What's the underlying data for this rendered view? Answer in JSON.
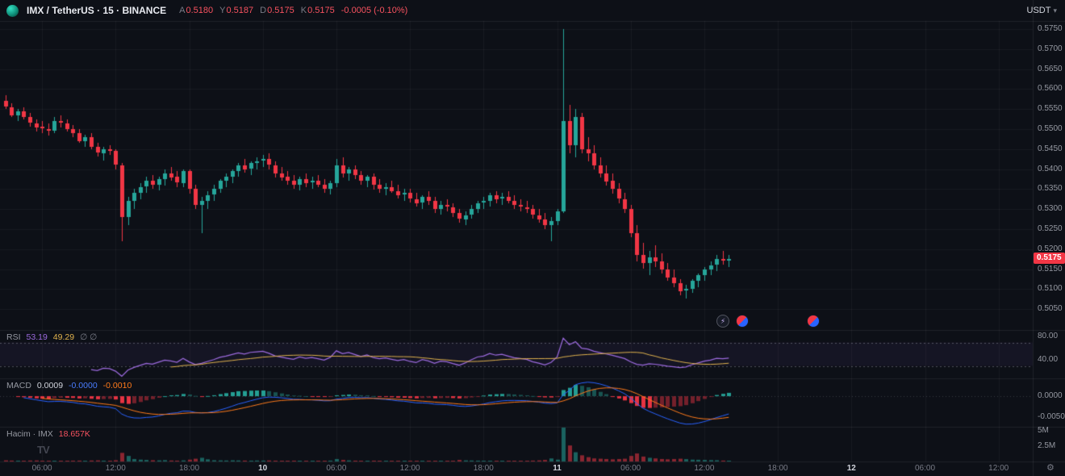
{
  "header": {
    "symbol_title": "IMX / TetherUS · 15 · BINANCE",
    "ohlc": {
      "o_label": "A",
      "o": "0.5180",
      "h_label": "Y",
      "h": "0.5187",
      "l_label": "D",
      "l": "0.5175",
      "c_label": "K",
      "c": "0.5175",
      "change": "-0.0005 (-0.10%)"
    },
    "currency_button": "USDT"
  },
  "legends": {
    "rsi": {
      "title": "RSI",
      "value1": "53.19",
      "value2": "49.29",
      "hidden": "∅ ∅"
    },
    "macd": {
      "title": "MACD",
      "hist_value": "0.0009",
      "macd_value": "-0.0000",
      "signal_value": "-0.0010"
    },
    "volume": {
      "title": "Hacim · IMX",
      "value": "18.657K"
    }
  },
  "icons": {
    "tradingview_logo": "TV",
    "currency_caret": "▾",
    "settings": "⚙",
    "flash_event": "⚡"
  },
  "axes": {
    "price_badge": "0.5175",
    "price_labels": [
      {
        "v": 0.575,
        "t": "0.5750"
      },
      {
        "v": 0.57,
        "t": "0.5700"
      },
      {
        "v": 0.565,
        "t": "0.5650"
      },
      {
        "v": 0.56,
        "t": "0.5600"
      },
      {
        "v": 0.555,
        "t": "0.5550"
      },
      {
        "v": 0.55,
        "t": "0.5500"
      },
      {
        "v": 0.545,
        "t": "0.5450"
      },
      {
        "v": 0.54,
        "t": "0.5400"
      },
      {
        "v": 0.535,
        "t": "0.5350"
      },
      {
        "v": 0.53,
        "t": "0.5300"
      },
      {
        "v": 0.525,
        "t": "0.5250"
      },
      {
        "v": 0.52,
        "t": "0.5200"
      },
      {
        "v": 0.515,
        "t": "0.5150"
      },
      {
        "v": 0.51,
        "t": "0.5100"
      },
      {
        "v": 0.505,
        "t": "0.5050"
      }
    ],
    "rsi_labels": [
      {
        "v": 80,
        "t": "80.00"
      },
      {
        "v": 40,
        "t": "40.00"
      }
    ],
    "macd_labels": [
      {
        "v": 0,
        "t": "0.0000"
      },
      {
        "v": -0.005,
        "t": "-0.0050"
      }
    ],
    "volume_labels": [
      {
        "v_k": 5000,
        "t": "5M"
      },
      {
        "v_k": 2500,
        "t": "2.5M"
      }
    ],
    "time_ticks": [
      {
        "i": 6,
        "t": "06:00",
        "major": false
      },
      {
        "i": 18,
        "t": "12:00",
        "major": false
      },
      {
        "i": 30,
        "t": "18:00",
        "major": false
      },
      {
        "i": 42,
        "t": "10",
        "major": true
      },
      {
        "i": 54,
        "t": "06:00",
        "major": false
      },
      {
        "i": 66,
        "t": "12:00",
        "major": false
      },
      {
        "i": 78,
        "t": "18:00",
        "major": false
      },
      {
        "i": 90,
        "t": "11",
        "major": true
      },
      {
        "i": 102,
        "t": "06:00",
        "major": false
      },
      {
        "i": 114,
        "t": "12:00",
        "major": false
      },
      {
        "i": 126,
        "t": "18:00",
        "major": false
      },
      {
        "i": 138,
        "t": "12",
        "major": true
      },
      {
        "i": 150,
        "t": "06:00",
        "major": false
      },
      {
        "i": 162,
        "t": "12:00",
        "major": false
      }
    ]
  },
  "colors": {
    "background": "#0d1017",
    "up": "#26a69a",
    "down": "#f23645",
    "rsi_line": "#9c6ade",
    "rsi_ma": "#e0b24d",
    "rsi_band": "rgba(126,87,194,0.08)",
    "macd_line": "#2962ff",
    "macd_signal": "#ff7a1a",
    "badge_bg": "#f23645",
    "text_muted": "#787b86"
  },
  "chart_data": {
    "type": "candlestick",
    "title": "IMX / TetherUS · 15 · BINANCE",
    "estimate_granularity_minutes": 30,
    "price_range": [
      0.5,
      0.577
    ],
    "rsi_scale": [
      10,
      90
    ],
    "rsi_levels": [
      70,
      30
    ],
    "macd_scale": [
      -0.007,
      0.004
    ],
    "volume_scale_max_k": 5500,
    "indicators": {
      "rsi": {
        "period": 14,
        "ma": 14
      },
      "macd": {
        "fast": 12,
        "slow": 26,
        "signal": 9
      }
    },
    "candles": [
      [
        0.557,
        0.5585,
        0.555,
        0.5555
      ],
      [
        0.5555,
        0.5565,
        0.553,
        0.5535
      ],
      [
        0.5535,
        0.555,
        0.552,
        0.5545
      ],
      [
        0.5545,
        0.5555,
        0.5525,
        0.553
      ],
      [
        0.553,
        0.554,
        0.5505,
        0.5515
      ],
      [
        0.5515,
        0.5525,
        0.5495,
        0.5505
      ],
      [
        0.5505,
        0.552,
        0.549,
        0.55
      ],
      [
        0.55,
        0.5515,
        0.5485,
        0.5495
      ],
      [
        0.5495,
        0.553,
        0.549,
        0.552
      ],
      [
        0.552,
        0.5535,
        0.5505,
        0.5515
      ],
      [
        0.5515,
        0.5525,
        0.5495,
        0.55
      ],
      [
        0.55,
        0.551,
        0.548,
        0.549
      ],
      [
        0.549,
        0.55,
        0.5465,
        0.547
      ],
      [
        0.547,
        0.5485,
        0.5455,
        0.548
      ],
      [
        0.548,
        0.549,
        0.545,
        0.5455
      ],
      [
        0.5455,
        0.5465,
        0.543,
        0.544
      ],
      [
        0.544,
        0.5455,
        0.542,
        0.545
      ],
      [
        0.545,
        0.546,
        0.5435,
        0.5445
      ],
      [
        0.5445,
        0.545,
        0.54,
        0.541
      ],
      [
        0.541,
        0.5415,
        0.522,
        0.528
      ],
      [
        0.528,
        0.533,
        0.526,
        0.532
      ],
      [
        0.532,
        0.535,
        0.53,
        0.534
      ],
      [
        0.534,
        0.5365,
        0.5325,
        0.5355
      ],
      [
        0.5355,
        0.538,
        0.534,
        0.537
      ],
      [
        0.537,
        0.5385,
        0.535,
        0.536
      ],
      [
        0.536,
        0.538,
        0.5345,
        0.5375
      ],
      [
        0.5375,
        0.54,
        0.536,
        0.539
      ],
      [
        0.539,
        0.5405,
        0.537,
        0.538
      ],
      [
        0.538,
        0.5395,
        0.5355,
        0.5365
      ],
      [
        0.5365,
        0.54,
        0.5355,
        0.5395
      ],
      [
        0.5395,
        0.54,
        0.534,
        0.535
      ],
      [
        0.535,
        0.536,
        0.53,
        0.531
      ],
      [
        0.531,
        0.533,
        0.524,
        0.532
      ],
      [
        0.532,
        0.5345,
        0.53,
        0.5335
      ],
      [
        0.5335,
        0.536,
        0.532,
        0.535
      ],
      [
        0.535,
        0.5375,
        0.534,
        0.537
      ],
      [
        0.537,
        0.539,
        0.5355,
        0.538
      ],
      [
        0.538,
        0.54,
        0.5365,
        0.5395
      ],
      [
        0.5395,
        0.5415,
        0.538,
        0.541
      ],
      [
        0.541,
        0.5425,
        0.539,
        0.54
      ],
      [
        0.54,
        0.542,
        0.5385,
        0.5415
      ],
      [
        0.5415,
        0.543,
        0.54,
        0.542
      ],
      [
        0.542,
        0.5435,
        0.5405,
        0.5425
      ],
      [
        0.5425,
        0.544,
        0.54,
        0.541
      ],
      [
        0.541,
        0.542,
        0.538,
        0.539
      ],
      [
        0.539,
        0.5405,
        0.537,
        0.538
      ],
      [
        0.538,
        0.5395,
        0.536,
        0.537
      ],
      [
        0.537,
        0.5385,
        0.535,
        0.536
      ],
      [
        0.536,
        0.538,
        0.5345,
        0.5375
      ],
      [
        0.5375,
        0.539,
        0.5355,
        0.5365
      ],
      [
        0.5365,
        0.538,
        0.535,
        0.537
      ],
      [
        0.537,
        0.5385,
        0.5355,
        0.536
      ],
      [
        0.536,
        0.5375,
        0.534,
        0.535
      ],
      [
        0.535,
        0.537,
        0.5335,
        0.5365
      ],
      [
        0.5365,
        0.5425,
        0.5355,
        0.541
      ],
      [
        0.541,
        0.543,
        0.538,
        0.539
      ],
      [
        0.539,
        0.5405,
        0.537,
        0.54
      ],
      [
        0.54,
        0.541,
        0.5375,
        0.5385
      ],
      [
        0.5385,
        0.5395,
        0.536,
        0.537
      ],
      [
        0.537,
        0.5385,
        0.5355,
        0.538
      ],
      [
        0.538,
        0.539,
        0.535,
        0.536
      ],
      [
        0.536,
        0.5375,
        0.534,
        0.535
      ],
      [
        0.535,
        0.5365,
        0.5335,
        0.5355
      ],
      [
        0.5355,
        0.537,
        0.534,
        0.5345
      ],
      [
        0.5345,
        0.536,
        0.5325,
        0.5335
      ],
      [
        0.5335,
        0.535,
        0.532,
        0.534
      ],
      [
        0.534,
        0.535,
        0.5315,
        0.5325
      ],
      [
        0.5325,
        0.534,
        0.5305,
        0.5315
      ],
      [
        0.5315,
        0.5335,
        0.53,
        0.533
      ],
      [
        0.533,
        0.5345,
        0.531,
        0.532
      ],
      [
        0.532,
        0.533,
        0.529,
        0.53
      ],
      [
        0.53,
        0.532,
        0.5285,
        0.531
      ],
      [
        0.531,
        0.5325,
        0.5295,
        0.5305
      ],
      [
        0.5305,
        0.5315,
        0.528,
        0.529
      ],
      [
        0.529,
        0.53,
        0.5265,
        0.5275
      ],
      [
        0.5275,
        0.5295,
        0.526,
        0.5285
      ],
      [
        0.5285,
        0.531,
        0.5275,
        0.53
      ],
      [
        0.53,
        0.532,
        0.529,
        0.5315
      ],
      [
        0.5315,
        0.533,
        0.53,
        0.532
      ],
      [
        0.532,
        0.534,
        0.5305,
        0.5335
      ],
      [
        0.5335,
        0.5345,
        0.5315,
        0.5325
      ],
      [
        0.5325,
        0.534,
        0.531,
        0.533
      ],
      [
        0.533,
        0.5345,
        0.5315,
        0.532
      ],
      [
        0.532,
        0.5335,
        0.53,
        0.531
      ],
      [
        0.531,
        0.5325,
        0.5295,
        0.5305
      ],
      [
        0.5305,
        0.532,
        0.529,
        0.53
      ],
      [
        0.53,
        0.531,
        0.5275,
        0.5285
      ],
      [
        0.5285,
        0.53,
        0.5265,
        0.5275
      ],
      [
        0.5275,
        0.529,
        0.525,
        0.526
      ],
      [
        0.526,
        0.528,
        0.522,
        0.527
      ],
      [
        0.527,
        0.53,
        0.526,
        0.5295
      ],
      [
        0.5295,
        0.575,
        0.529,
        0.552
      ],
      [
        0.552,
        0.556,
        0.544,
        0.546
      ],
      [
        0.546,
        0.555,
        0.543,
        0.553
      ],
      [
        0.553,
        0.554,
        0.544,
        0.545
      ],
      [
        0.545,
        0.548,
        0.542,
        0.544
      ],
      [
        0.544,
        0.546,
        0.54,
        0.541
      ],
      [
        0.541,
        0.543,
        0.538,
        0.539
      ],
      [
        0.539,
        0.541,
        0.536,
        0.537
      ],
      [
        0.537,
        0.539,
        0.534,
        0.535
      ],
      [
        0.535,
        0.5365,
        0.5315,
        0.5325
      ],
      [
        0.5325,
        0.534,
        0.529,
        0.53
      ],
      [
        0.53,
        0.531,
        0.523,
        0.524
      ],
      [
        0.524,
        0.526,
        0.517,
        0.5185
      ],
      [
        0.5185,
        0.5215,
        0.515,
        0.5165
      ],
      [
        0.5165,
        0.5195,
        0.5135,
        0.518
      ],
      [
        0.518,
        0.521,
        0.5155,
        0.517
      ],
      [
        0.517,
        0.519,
        0.514,
        0.515
      ],
      [
        0.515,
        0.5165,
        0.512,
        0.513
      ],
      [
        0.513,
        0.515,
        0.5105,
        0.5115
      ],
      [
        0.5115,
        0.5125,
        0.5085,
        0.5095
      ],
      [
        0.5095,
        0.511,
        0.5075,
        0.51
      ],
      [
        0.51,
        0.5125,
        0.509,
        0.512
      ],
      [
        0.512,
        0.514,
        0.5105,
        0.5135
      ],
      [
        0.5135,
        0.5155,
        0.512,
        0.515
      ],
      [
        0.515,
        0.517,
        0.5135,
        0.516
      ],
      [
        0.516,
        0.5185,
        0.5145,
        0.5175
      ],
      [
        0.5175,
        0.5195,
        0.516,
        0.517
      ],
      [
        0.517,
        0.5185,
        0.5155,
        0.5175
      ]
    ],
    "volumes_k": [
      180,
      150,
      140,
      120,
      160,
      170,
      110,
      100,
      130,
      120,
      90,
      140,
      150,
      120,
      160,
      180,
      140,
      120,
      200,
      1400,
      900,
      400,
      300,
      250,
      200,
      180,
      220,
      160,
      140,
      180,
      300,
      450,
      600,
      350,
      200,
      180,
      160,
      190,
      170,
      150,
      140,
      160,
      150,
      170,
      140,
      130,
      120,
      140,
      110,
      130,
      120,
      110,
      130,
      150,
      400,
      250,
      180,
      140,
      130,
      120,
      140,
      110,
      100,
      120,
      90,
      110,
      100,
      110,
      90,
      120,
      130,
      100,
      90,
      110,
      250,
      180,
      160,
      140,
      120,
      130,
      110,
      100,
      120,
      110,
      90,
      100,
      150,
      180,
      250,
      500,
      300,
      5500,
      2600,
      1500,
      1000,
      700,
      500,
      450,
      400,
      350,
      400,
      450,
      900,
      1300,
      800,
      600,
      500,
      400,
      350,
      400,
      450,
      380,
      300,
      280,
      250,
      220,
      200,
      150,
      18.657
    ]
  }
}
